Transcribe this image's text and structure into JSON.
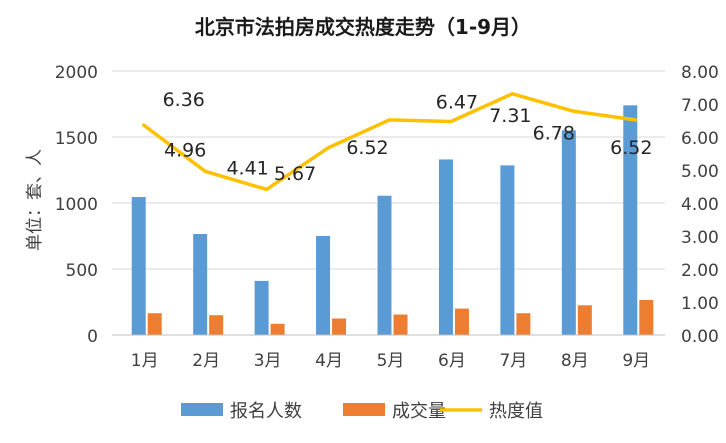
{
  "chart_data": {
    "type": "bar",
    "title": "北京市法拍房成交热度走势（1-9月）",
    "ylabel": "单位：套、人",
    "categories": [
      "1月",
      "2月",
      "3月",
      "4月",
      "5月",
      "6月",
      "7月",
      "8月",
      "9月"
    ],
    "ylim": [
      0,
      2000
    ],
    "yticks": [
      0,
      500,
      1000,
      1500,
      2000
    ],
    "y2lim": [
      0,
      8
    ],
    "y2ticks": [
      "0.00",
      "1.00",
      "2.00",
      "3.00",
      "4.00",
      "5.00",
      "6.00",
      "7.00",
      "8.00"
    ],
    "grid": true,
    "legend_position": "bottom",
    "series": [
      {
        "name": "报名人数",
        "type": "bar",
        "axis": "left",
        "color": "#5b9bd5",
        "values": [
          1045,
          765,
          410,
          750,
          1055,
          1330,
          1285,
          1550,
          1740
        ]
      },
      {
        "name": "成交量",
        "type": "bar",
        "axis": "left",
        "color": "#ed7d31",
        "values": [
          165,
          150,
          85,
          125,
          155,
          200,
          165,
          225,
          265
        ]
      },
      {
        "name": "热度值",
        "type": "line",
        "axis": "right",
        "color": "#ffc000",
        "values": [
          6.36,
          4.96,
          4.41,
          5.67,
          6.52,
          6.47,
          7.31,
          6.78,
          6.52
        ],
        "labels": [
          "6.36",
          "4.96",
          "4.41",
          "5.67",
          "6.52",
          "6.47",
          "7.31",
          "6.78",
          "6.52"
        ]
      }
    ]
  }
}
